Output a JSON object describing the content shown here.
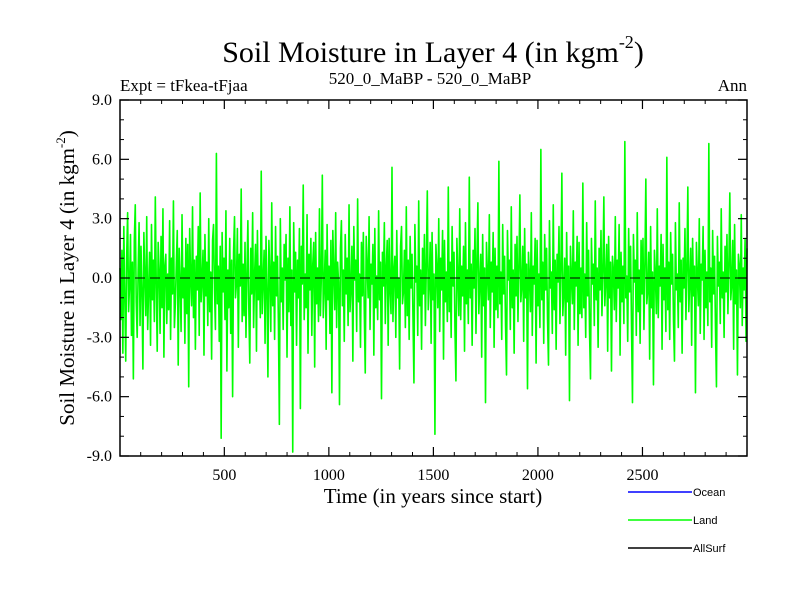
{
  "chart_data": {
    "type": "line",
    "title": "Soil Moisture in Layer 4 (in kgm",
    "title_superscript": "-2",
    "title_suffix": ")",
    "subtitle_left": "Expt = tFkea-tFjaa",
    "subtitle_center": "520_0_MaBP - 520_0_MaBP",
    "subtitle_right": "Ann",
    "xlabel": "Time (in years since start)",
    "ylabel": "Soil Moisture in Layer 4 (in kgm",
    "ylabel_superscript": "-2",
    "ylabel_suffix": ")",
    "xlim": [
      1,
      3000
    ],
    "ylim": [
      -9.0,
      9.0
    ],
    "x_ticks": [
      500,
      1000,
      1500,
      2000,
      2500
    ],
    "x_tick_labels": [
      "500",
      "1000",
      "1500",
      "2000",
      "2500"
    ],
    "y_ticks": [
      -9.0,
      -6.0,
      -3.0,
      0.0,
      3.0,
      6.0,
      9.0
    ],
    "y_tick_labels": [
      "-9.0",
      "-6.0",
      "-3.0",
      "0.0",
      "3.0",
      "6.0",
      "9.0"
    ],
    "zero_line": true,
    "legend": [
      {
        "name": "Ocean",
        "color": "#0000ff"
      },
      {
        "name": "Land",
        "color": "#00ff00"
      },
      {
        "name": "AllSurf",
        "color": "#000000"
      }
    ],
    "legend_position": "bottom-right",
    "series": [
      {
        "name": "Land",
        "color": "#00ff00",
        "x_start": 1,
        "x_end": 3000,
        "values": [
          0.5,
          -2.1,
          1.4,
          -3.8,
          2.6,
          -0.9,
          -4.2,
          1.1,
          3.3,
          -1.7,
          -0.4,
          2.2,
          -2.9,
          0.8,
          -5.1,
          1.9,
          3.7,
          -1.2,
          -3.0,
          0.3,
          2.8,
          -2.4,
          1.6,
          -0.7,
          -4.6,
          2.3,
          0.1,
          -1.9,
          3.1,
          -2.6,
          -0.5,
          1.3,
          -3.4,
          2.7,
          -1.1,
          0.9,
          -2.2,
          4.1,
          -0.3,
          -3.7,
          1.8,
          0.4,
          -2.8,
          2.1,
          -1.5,
          3.5,
          -4.0,
          0.6,
          1.2,
          -2.3,
          0.2,
          -1.6,
          2.9,
          -3.1,
          1.0,
          -0.8,
          3.9,
          -2.5,
          -1.3,
          0.7,
          2.4,
          -4.4,
          1.5,
          -0.2,
          -2.7,
          3.2,
          -1.0,
          0.5,
          -3.3,
          2.0,
          -1.8,
          1.7,
          -5.5,
          2.5,
          0.0,
          -1.4,
          3.6,
          -2.0,
          0.9,
          -3.6,
          1.1,
          -0.6,
          2.6,
          -2.9,
          4.3,
          -1.2,
          -0.1,
          1.4,
          -3.9,
          2.2,
          -0.9,
          0.8,
          -2.4,
          3.0,
          -1.7,
          0.3,
          -4.1,
          1.9,
          2.7,
          -0.5,
          -2.6,
          6.3,
          -1.3,
          0.6,
          -3.2,
          1.6,
          -8.1,
          2.3,
          -0.7,
          1.0,
          -2.1,
          3.4,
          -4.7,
          0.4,
          -1.5,
          2.0,
          -2.8,
          0.9,
          -6.0,
          1.3,
          3.1,
          -1.0,
          -0.3,
          2.5,
          -3.5,
          1.2,
          -0.4,
          4.5,
          -2.2,
          0.7,
          -1.9,
          1.8,
          -3.0,
          0.2,
          2.9,
          -1.6,
          -4.3,
          1.5,
          -0.8,
          3.3,
          -2.5,
          0.1,
          1.7,
          -3.7,
          2.4,
          -1.1,
          0.6,
          -2.0,
          5.4,
          -1.8,
          -0.2,
          1.4,
          -3.3,
          2.1,
          -0.6,
          -5.0,
          1.9,
          0.3,
          -2.7,
          3.8,
          -1.4,
          0.8,
          -3.1,
          2.6,
          -0.9,
          1.1,
          -2.3,
          -7.4,
          3.0,
          -1.2,
          0.5,
          -2.6,
          1.7,
          -0.1,
          2.2,
          -4.0,
          1.0,
          -1.7,
          3.6,
          -2.4,
          0.4,
          -8.8,
          2.8,
          -0.7,
          1.3,
          -3.4,
          0.9,
          -1.0,
          2.5,
          -6.6,
          1.6,
          -0.3,
          4.7,
          -2.1,
          0.2,
          -1.5,
          3.2,
          -3.8,
          1.2,
          -0.6,
          2.0,
          -2.9,
          0.7,
          1.8,
          -4.5,
          2.3,
          -1.3,
          0.5,
          -2.2,
          3.5,
          -1.9,
          0.1,
          5.2,
          -2.0,
          -0.4,
          1.4,
          -3.6,
          2.7,
          -1.1,
          0.6,
          -2.8,
          1.9,
          -5.8,
          2.4,
          0.3,
          -1.6,
          3.3,
          -2.5,
          0.8,
          -0.2,
          -6.4,
          1.5,
          2.9,
          -1.4,
          0.4,
          -3.2,
          2.2,
          -0.8,
          1.0,
          -2.4,
          3.7,
          -1.7,
          -0.5,
          1.6,
          -4.2,
          2.6,
          -0.1,
          0.9,
          -2.7,
          4.0,
          -1.2,
          0.2,
          -3.5,
          1.8,
          -0.9,
          2.3,
          -1.8,
          -4.8,
          2.1,
          0.6,
          -1.0,
          3.1,
          -2.6,
          0.7,
          -0.3,
          1.7,
          -3.9,
          2.5,
          -1.5,
          0.1,
          -2.1,
          3.4,
          -1.1,
          0.8,
          -6.1,
          1.3,
          -0.4,
          2.8,
          -2.3,
          0.5,
          1.9,
          -3.4,
          2.0,
          -0.6,
          -1.8,
          5.6,
          -2.2,
          0.3,
          1.1,
          -3.0,
          2.4,
          -1.0,
          0.0,
          -4.6,
          1.6,
          2.6,
          -1.3,
          -0.7,
          1.4,
          -2.5,
          3.6,
          -1.9,
          0.9,
          -3.1,
          2.1,
          -0.5,
          1.2,
          -2.0,
          -5.3,
          2.7,
          -0.2,
          0.6,
          -2.9,
          3.9,
          -1.4,
          0.4,
          -3.6,
          1.5,
          -0.8,
          2.2,
          -2.4,
          0.7,
          4.4,
          -1.6,
          -0.3,
          1.8,
          -3.3,
          2.3,
          -1.1,
          0.2,
          -7.9,
          1.7,
          0.5,
          -1.5,
          3.0,
          -2.7,
          1.0,
          -0.6,
          2.4,
          -4.1,
          1.9,
          -1.2,
          0.3,
          -2.2,
          4.6,
          -1.7,
          0.8,
          -3.0,
          2.6,
          -0.4,
          1.3,
          -2.6,
          -5.2,
          2.0,
          0.1,
          -1.9,
          3.5,
          -2.1,
          0.6,
          -0.9,
          1.6,
          -3.7,
          2.8,
          -1.3,
          0.4,
          -2.3,
          5.1,
          -1.0,
          0.7,
          -3.4,
          1.4,
          -0.5,
          2.5,
          -2.8,
          0.9,
          3.8,
          -1.8,
          -0.2,
          1.2,
          -4.0,
          2.2,
          -1.4,
          0.5,
          -6.3,
          1.8,
          0.2,
          -1.1,
          3.2,
          -2.5,
          0.8,
          -0.7,
          2.3,
          -3.5,
          1.5,
          -1.6,
          0.6,
          -2.0,
          5.9,
          -1.3,
          0.3,
          -3.1,
          2.7,
          -0.8,
          1.1,
          -2.4,
          -4.9,
          2.4,
          -0.1,
          0.9,
          -2.6,
          3.6,
          -1.5,
          0.4,
          -3.8,
          1.7,
          -0.9,
          2.1,
          -2.2,
          0.5,
          4.2,
          -1.2,
          -0.4,
          1.6,
          -3.2,
          2.5,
          -1.0,
          0.7,
          -5.6,
          1.3,
          0.1,
          -1.7,
          3.3,
          -2.9,
          0.6,
          -0.3,
          2.0,
          -4.3,
          1.9,
          -1.4,
          0.2,
          -2.5,
          6.5,
          -1.1,
          0.8,
          -3.3,
          2.2,
          -0.6,
          1.5,
          -2.1,
          -4.4,
          2.9,
          -0.5,
          0.3,
          -2.8,
          3.7,
          -1.6,
          0.9,
          -3.6,
          1.2,
          -0.2,
          2.6,
          -2.3,
          0.4,
          5.3,
          -1.9,
          -0.7,
          1.0,
          -3.9,
          2.3,
          -1.2,
          0.6,
          -6.2,
          1.6,
          0.0,
          -1.3,
          3.4,
          -2.6,
          0.8,
          -0.4,
          2.1,
          -3.4,
          1.8,
          -1.8,
          0.5,
          -2.0,
          4.8,
          -1.5,
          0.2,
          -3.0,
          2.8,
          -0.9,
          1.4,
          -2.7,
          -5.1,
          2.0,
          -0.3,
          0.7,
          -2.4,
          3.9,
          -1.1,
          0.5,
          -3.5,
          1.5,
          -0.6,
          2.4,
          -1.9,
          0.3,
          4.1,
          -1.4,
          -0.1,
          1.7,
          -3.7,
          2.1,
          -1.0,
          0.8,
          -4.7,
          1.1,
          0.4,
          -1.6,
          3.1,
          -2.2,
          0.9,
          -0.5,
          2.7,
          -3.9,
          1.3,
          -1.2,
          0.6,
          -2.3,
          6.9,
          -1.0,
          0.1,
          -3.2,
          2.5,
          -0.7,
          1.6,
          -2.5,
          -6.3,
          2.2,
          -0.2,
          0.9,
          -2.9,
          3.3,
          -1.7,
          0.4,
          -3.3,
          1.9,
          -0.8,
          2.0,
          -2.6,
          0.7,
          5.0,
          -1.3,
          -0.6,
          1.3,
          -4.1,
          2.6,
          -1.5,
          0.3,
          -5.4,
          1.4,
          0.2,
          -1.8,
          3.5,
          -2.0,
          0.6,
          -0.4,
          2.2,
          -3.6,
          1.7,
          -1.1,
          0.5,
          -2.7,
          6.1,
          -1.6,
          0.8,
          -3.1,
          2.3,
          -0.3,
          1.2,
          -2.2,
          -4.2,
          2.8,
          -0.6,
          0.2,
          -2.5,
          3.8,
          -1.2,
          0.9,
          -3.8,
          1.0,
          -0.5,
          2.5,
          -2.1,
          0.4,
          4.6,
          -1.7,
          -0.2,
          1.5,
          -3.4,
          2.0,
          -0.9,
          0.6,
          -5.8,
          1.8,
          0.1,
          -1.4,
          3.0,
          -2.8,
          0.7,
          -0.1,
          2.6,
          -3.1,
          1.4,
          -1.5,
          0.3,
          -2.4,
          6.8,
          -1.2,
          0.5,
          -3.5,
          2.4,
          -0.8,
          1.1,
          -2.6,
          -5.5,
          2.1,
          -0.4,
          0.8,
          -2.3,
          3.5,
          -1.0,
          0.3,
          -3.0,
          1.6,
          -0.7,
          2.2,
          -1.8,
          0.6,
          4.3,
          -1.1,
          -0.3,
          1.9,
          -3.6,
          2.7,
          -1.3,
          0.4,
          -4.9,
          1.2,
          0.6,
          -1.5,
          3.2,
          -2.4,
          0.5,
          -0.6,
          2.0,
          -3.2,
          1.5
        ]
      }
    ]
  }
}
